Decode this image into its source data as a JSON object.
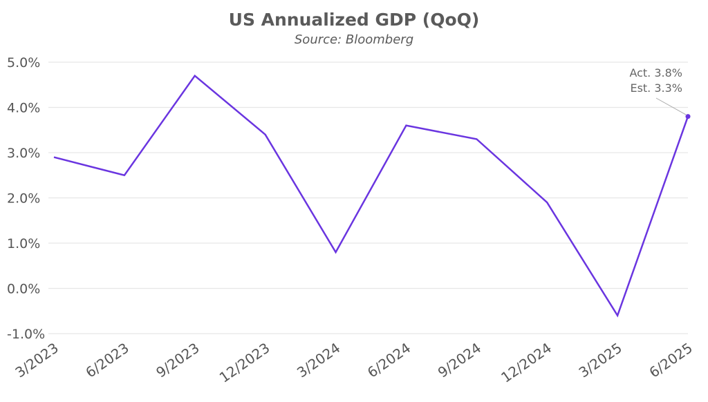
{
  "chart_data": {
    "type": "line",
    "title": "US Annualized GDP (QoQ)",
    "subtitle": "Source: Bloomberg",
    "xlabel": "",
    "ylabel": "",
    "categories": [
      "3/2023",
      "6/2023",
      "9/2023",
      "12/2023",
      "3/2024",
      "6/2024",
      "9/2024",
      "12/2024",
      "3/2025",
      "6/2025"
    ],
    "series": [
      {
        "name": "US Annualized GDP (QoQ)",
        "color": "#6a35e0",
        "values": [
          2.9,
          2.5,
          4.7,
          3.4,
          0.8,
          3.6,
          3.3,
          1.9,
          -0.6,
          3.8
        ]
      }
    ],
    "ylim": [
      -1.0,
      5.0
    ],
    "yticks": [
      5.0,
      4.0,
      3.0,
      2.0,
      1.0,
      0.0,
      -1.0
    ],
    "ytick_labels": [
      "5.0%",
      "4.0%",
      "3.0%",
      "2.0%",
      "1.0%",
      "0.0%",
      "-1.0%"
    ],
    "grid": true,
    "annotation": {
      "lines": [
        "Act. 3.8%",
        "Est. 3.3%"
      ],
      "category": "6/2025",
      "value": 3.8
    }
  }
}
